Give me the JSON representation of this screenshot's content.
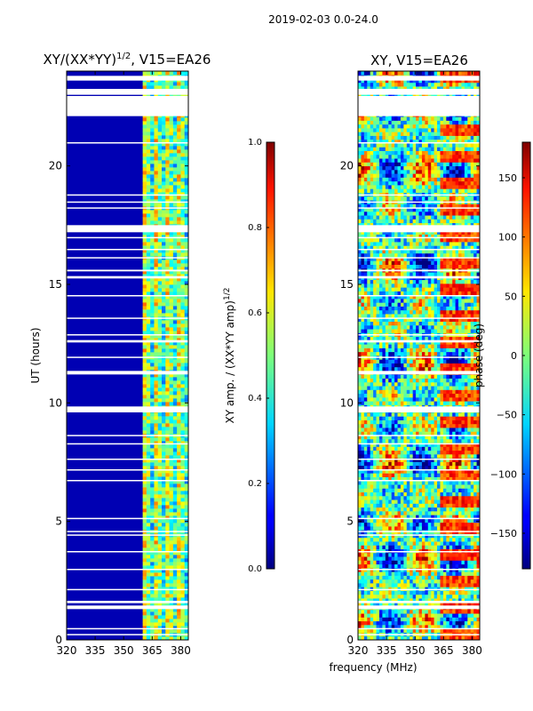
{
  "figure_title": "2019-02-03 0.0-24.0",
  "shared_xlabel": "frequency (MHz)",
  "colors": {
    "axis": "#000000",
    "gap": "#ffffff"
  },
  "chart_data": [
    {
      "type": "heatmap",
      "title_main": "XY/(XX*YY)",
      "title_sup": "1/2",
      "title_rest": ", V15=EA26",
      "xlabel": "",
      "ylabel": "UT (hours)",
      "xlim": [
        320,
        384
      ],
      "ylim": [
        0,
        24
      ],
      "x_ticks": [
        320,
        335,
        350,
        365,
        380
      ],
      "y_ticks": [
        0,
        5,
        10,
        15,
        20
      ],
      "colorbar": {
        "label_main": "XY amp. / (XX*YY amp)",
        "label_sup": "1/2",
        "range": [
          0.0,
          1.0
        ],
        "ticks": [
          "0.0",
          "0.2",
          "0.4",
          "0.6",
          "0.8",
          "1.0"
        ],
        "tick_values": [
          0.0,
          0.2,
          0.4,
          0.6,
          0.8,
          1.0
        ]
      },
      "description_values": {
        "low_band_level": 0.05,
        "high_band_start_mhz": 360,
        "high_band_level": 0.45
      }
    },
    {
      "type": "heatmap",
      "title_main": "XY, V15=EA26",
      "xlabel": "frequency (MHz)",
      "ylabel": "",
      "xlim": [
        320,
        384
      ],
      "ylim": [
        0,
        24
      ],
      "x_ticks": [
        320,
        335,
        350,
        365,
        380
      ],
      "y_ticks": [
        0,
        5,
        10,
        15,
        20
      ],
      "colorbar": {
        "label_main": "phase (deg)",
        "range": [
          -180,
          180
        ],
        "ticks": [
          "150",
          "100",
          "50",
          "0",
          "−50",
          "−100",
          "−150"
        ],
        "tick_values": [
          150,
          100,
          50,
          0,
          -50,
          -100,
          -150
        ]
      }
    }
  ],
  "flagged_gaps_ut": [
    [
      23.6,
      23.8
    ],
    [
      23.0,
      23.25
    ],
    [
      22.1,
      22.95
    ],
    [
      20.95,
      21.0
    ],
    [
      18.75,
      18.8
    ],
    [
      18.45,
      18.5
    ],
    [
      18.2,
      18.25
    ],
    [
      17.2,
      17.5
    ],
    [
      16.95,
      17.0
    ],
    [
      16.45,
      16.5
    ],
    [
      16.1,
      16.15
    ],
    [
      15.55,
      15.62
    ],
    [
      15.25,
      15.35
    ],
    [
      14.5,
      14.55
    ],
    [
      13.55,
      13.6
    ],
    [
      12.85,
      12.9
    ],
    [
      12.55,
      12.65
    ],
    [
      11.9,
      11.95
    ],
    [
      11.2,
      11.35
    ],
    [
      9.6,
      9.85
    ],
    [
      8.6,
      8.65
    ],
    [
      8.25,
      8.3
    ],
    [
      7.6,
      7.65
    ],
    [
      7.15,
      7.2
    ],
    [
      6.7,
      6.75
    ],
    [
      5.1,
      5.15
    ],
    [
      4.55,
      4.6
    ],
    [
      4.4,
      4.45
    ],
    [
      3.7,
      3.75
    ],
    [
      2.95,
      3.0
    ],
    [
      2.1,
      2.15
    ],
    [
      1.55,
      1.65
    ],
    [
      1.3,
      1.45
    ],
    [
      0.45,
      0.5
    ],
    [
      0.2,
      0.25
    ]
  ]
}
